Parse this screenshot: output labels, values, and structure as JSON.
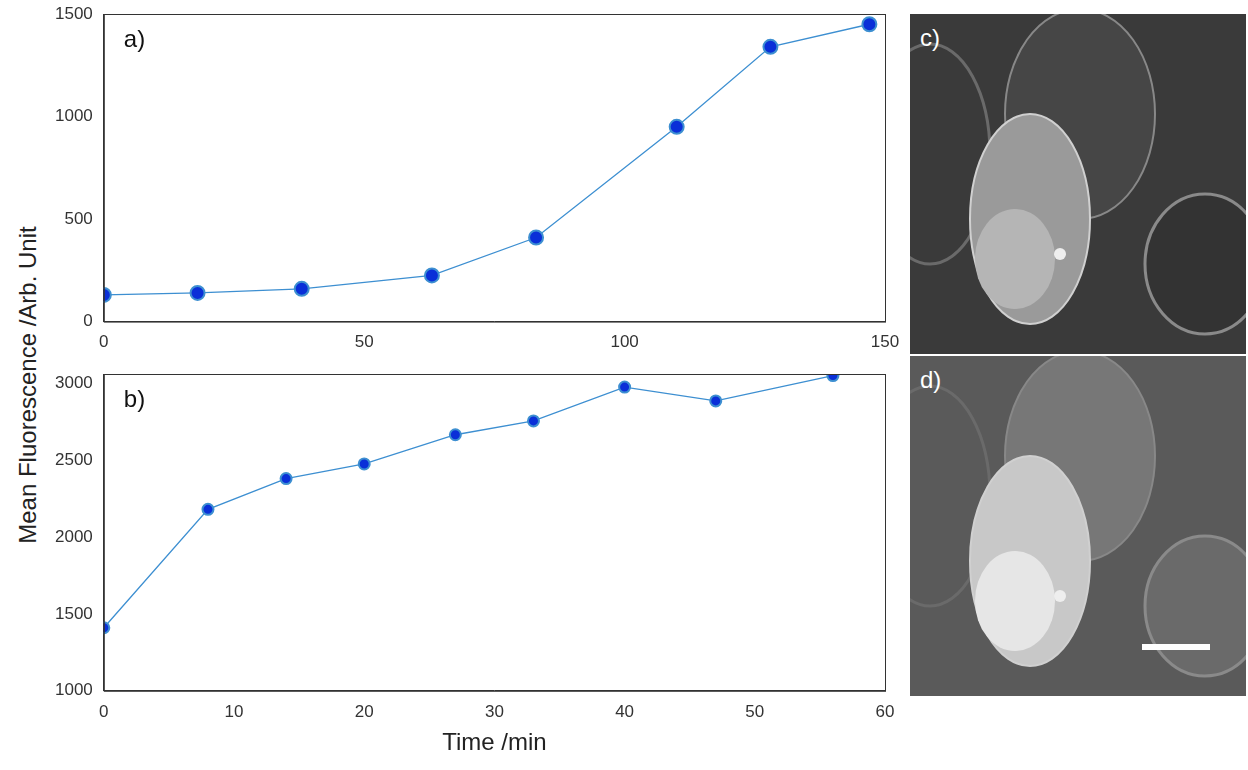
{
  "figure": {
    "y_label": "Mean Fluorescence /Arb. Unit"
  },
  "chart_data": [
    {
      "type": "line",
      "title": "a)",
      "marker": "circle",
      "color": "#3d8fd1",
      "grid": false,
      "x": [
        0,
        18,
        38,
        63,
        83,
        110,
        128,
        147
      ],
      "values": [
        130,
        140,
        160,
        225,
        410,
        950,
        1340,
        1450
      ],
      "xlim": [
        0,
        150
      ],
      "xticks": [
        0,
        50,
        100,
        150
      ],
      "ylim": [
        0,
        1500
      ],
      "yticks": [
        0,
        500,
        1000,
        1500
      ]
    },
    {
      "type": "line",
      "title": "b)",
      "marker": "circle",
      "color": "#3d8fd1",
      "grid": false,
      "x_label": "Time /min",
      "x": [
        0,
        8,
        14,
        20,
        27,
        33,
        40,
        47,
        56
      ],
      "values": [
        1410,
        2180,
        2380,
        2475,
        2665,
        2755,
        2975,
        2885,
        3050
      ],
      "xlim": [
        0,
        60
      ],
      "xticks": [
        0,
        10,
        20,
        30,
        40,
        50,
        60
      ],
      "ylim": [
        1000,
        3060
      ],
      "yticks": [
        1000,
        1500,
        2000,
        2500,
        3000
      ]
    }
  ],
  "images": [
    {
      "title": "c)"
    },
    {
      "title": "d)"
    }
  ]
}
